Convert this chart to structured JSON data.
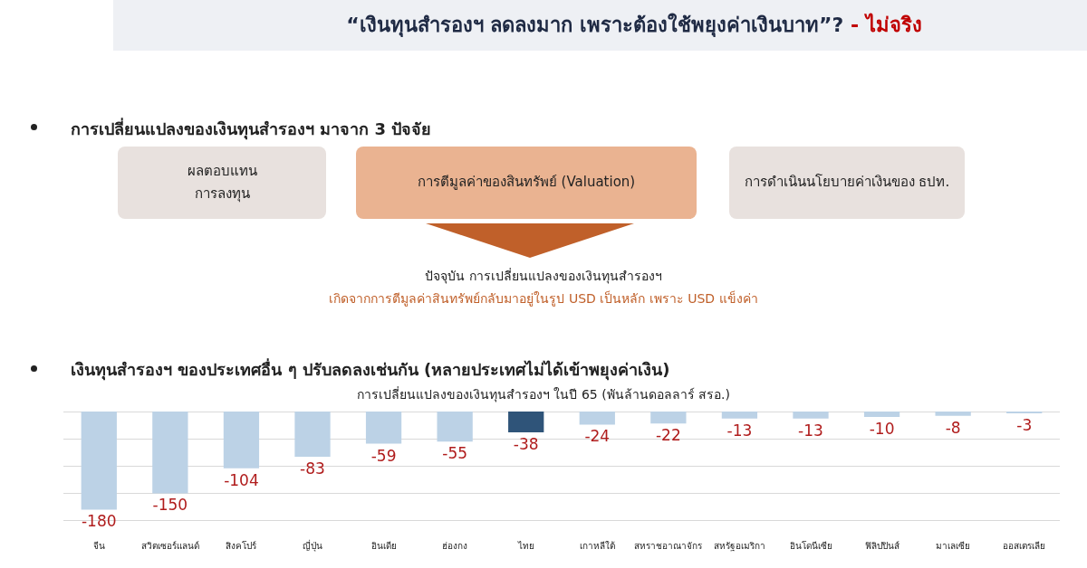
{
  "chart_data": {
    "type": "bar",
    "title": "การเปลี่ยนแปลงของเงินทุนสำรองฯ ในปี 65 (พันล้านดอลลาร์ สรอ.)",
    "categories": [
      "จีน",
      "สวิตเซอร์แลนด์",
      "สิงคโปร์",
      "ญี่ปุ่น",
      "อินเดีย",
      "ฮ่องกง",
      "ไทย",
      "เกาหลีใต้",
      "สหราชอาณาจักร",
      "สหรัฐอเมริกา",
      "อินโดนีเซีย",
      "ฟิลิปปินส์",
      "มาเลเซีย",
      "ออสเตรเลีย"
    ],
    "values": [
      -180,
      -150,
      -104,
      -83,
      -59,
      -55,
      -38,
      -24,
      -22,
      -13,
      -13,
      -10,
      -8,
      -3
    ],
    "colors": [
      "#bcd2e6",
      "#bcd2e6",
      "#bcd2e6",
      "#bcd2e6",
      "#bcd2e6",
      "#bcd2e6",
      "#2f5479",
      "#bcd2e6",
      "#bcd2e6",
      "#bcd2e6",
      "#bcd2e6",
      "#bcd2e6",
      "#bcd2e6",
      "#bcd2e6"
    ],
    "data_labels": true,
    "grid": "y",
    "annotations": [
      "“เงินทุนสำรองฯ ลดลงมาก เพราะต้องใช้พยุงค่าเงินบาท”?",
      "- ไม่จริง",
      "การเปลี่ยนแปลงของเงินทุนสำรองฯ มาจาก 3 ปัจจัย",
      "ผลตอบแทน\nการลงทุน",
      "การตีมูลค่าของสินทรัพย์ (Valuation)",
      "การดำเนินนโยบายค่าเงินของ ธปท.",
      "ปัจจุบัน การเปลี่ยนแปลงของเงินทุนสำรองฯ",
      "เกิดจากการตีมูลค่าสินทรัพย์กลับมาอยู่ในรูป USD เป็นหลัก เพราะ USD แข็งค่า",
      "เงินทุนสำรองฯ ของประเทศอื่น ๆ ปรับลดลงเช่นกัน (หลายประเทศไม่ได้เข้าพยุงค่าเงิน)"
    ]
  }
}
